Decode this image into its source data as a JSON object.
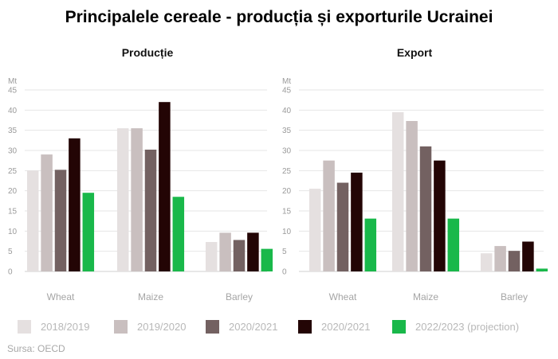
{
  "title": "Principalele cereale - producția și exporturile Ucrainei",
  "source": "Sursa: OECD",
  "legend": [
    {
      "label": "2018/2019",
      "color": "#e5e0e0"
    },
    {
      "label": "2019/2020",
      "color": "#c9bfbf"
    },
    {
      "label": "2020/2021",
      "color": "#736161"
    },
    {
      "label": "2020/2021",
      "color": "#230505"
    },
    {
      "label": "2022/2023 (projection)",
      "color": "#19b84a"
    }
  ],
  "chart_data": [
    {
      "type": "bar",
      "title": "Producție",
      "ylabel": "Mt",
      "categories": [
        "Wheat",
        "Maize",
        "Barley"
      ],
      "yticks": [
        0,
        5,
        10,
        15,
        20,
        25,
        30,
        35,
        40,
        45
      ],
      "ylim": [
        0,
        45
      ],
      "grid": true,
      "series": [
        {
          "name": "2018/2019",
          "color": "#e5e0e0",
          "values": [
            25,
            35.5,
            7.3
          ]
        },
        {
          "name": "2019/2020",
          "color": "#c9bfbf",
          "values": [
            29,
            35.5,
            9.6
          ]
        },
        {
          "name": "2020/2021",
          "color": "#736161",
          "values": [
            25.2,
            30.2,
            7.8
          ]
        },
        {
          "name": "2020/2021",
          "color": "#230505",
          "values": [
            33,
            42,
            9.6
          ]
        },
        {
          "name": "2022/2023 (projection)",
          "color": "#19b84a",
          "values": [
            19.5,
            18.5,
            5.6
          ]
        }
      ]
    },
    {
      "type": "bar",
      "title": "Export",
      "ylabel": "Mt",
      "categories": [
        "Wheat",
        "Maize",
        "Barley"
      ],
      "yticks": [
        0,
        5,
        10,
        15,
        20,
        25,
        30,
        35,
        40,
        45
      ],
      "ylim": [
        0,
        45
      ],
      "grid": true,
      "series": [
        {
          "name": "2018/2019",
          "color": "#e5e0e0",
          "values": [
            20.5,
            39.5,
            4.5
          ]
        },
        {
          "name": "2019/2020",
          "color": "#c9bfbf",
          "values": [
            27.5,
            37.3,
            6.3
          ]
        },
        {
          "name": "2020/2021",
          "color": "#736161",
          "values": [
            22,
            31,
            5.1
          ]
        },
        {
          "name": "2020/2021",
          "color": "#230505",
          "values": [
            24.5,
            27.5,
            7.4
          ]
        },
        {
          "name": "2022/2023 (projection)",
          "color": "#19b84a",
          "values": [
            13.1,
            13.1,
            0.7
          ]
        }
      ]
    }
  ]
}
